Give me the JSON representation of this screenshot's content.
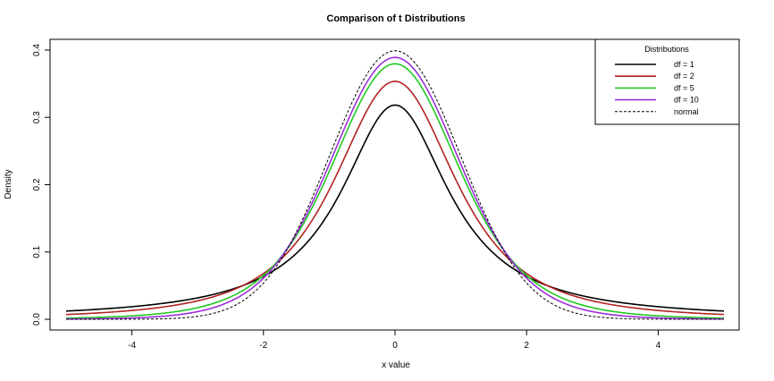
{
  "chart_data": {
    "type": "line",
    "title": "Comparison of t Distributions",
    "xlabel": "x value",
    "ylabel": "Density",
    "xlim": [
      -5,
      5
    ],
    "ylim": [
      0,
      0.4
    ],
    "x_ticks": [
      -4,
      -2,
      0,
      2,
      4
    ],
    "x_tick_labels": [
      "-4",
      "-2",
      "0",
      "2",
      "4"
    ],
    "y_ticks": [
      0.0,
      0.1,
      0.2,
      0.3,
      0.4
    ],
    "y_tick_labels": [
      "0.0",
      "0.1",
      "0.2",
      "0.3",
      "0.4"
    ],
    "grid": false,
    "legend": {
      "title": "Distributions",
      "placement": "top-right"
    },
    "series": [
      {
        "name": "df = 1",
        "df": 1,
        "color": "#000000",
        "dash": "solid"
      },
      {
        "name": "df = 2",
        "df": 2,
        "color": "#b22222",
        "dash": "solid"
      },
      {
        "name": "df = 5",
        "df": 5,
        "color": "#22c922",
        "dash": "solid"
      },
      {
        "name": "df = 10",
        "df": 10,
        "color": "#9b30d9",
        "dash": "solid"
      },
      {
        "name": "normal",
        "df": null,
        "color": "#000000",
        "dash": "dashed"
      }
    ],
    "x": [
      -5,
      -4,
      -3,
      -2,
      -1,
      0,
      1,
      2,
      3,
      4,
      5
    ],
    "values": {
      "df = 1": [
        0.012,
        0.019,
        0.032,
        0.064,
        0.159,
        0.318,
        0.159,
        0.064,
        0.032,
        0.019,
        0.012
      ],
      "df = 2": [
        0.007,
        0.013,
        0.027,
        0.068,
        0.192,
        0.354,
        0.192,
        0.068,
        0.027,
        0.013,
        0.007
      ],
      "df = 5": [
        0.002,
        0.005,
        0.017,
        0.065,
        0.22,
        0.38,
        0.22,
        0.065,
        0.017,
        0.005,
        0.002
      ],
      "df = 10": [
        0.0004,
        0.002,
        0.011,
        0.061,
        0.23,
        0.389,
        0.23,
        0.061,
        0.011,
        0.002,
        0.0004
      ],
      "normal": [
        1.5e-06,
        0.0001,
        0.004,
        0.054,
        0.242,
        0.399,
        0.242,
        0.054,
        0.004,
        0.0001,
        1.5e-06
      ]
    }
  }
}
